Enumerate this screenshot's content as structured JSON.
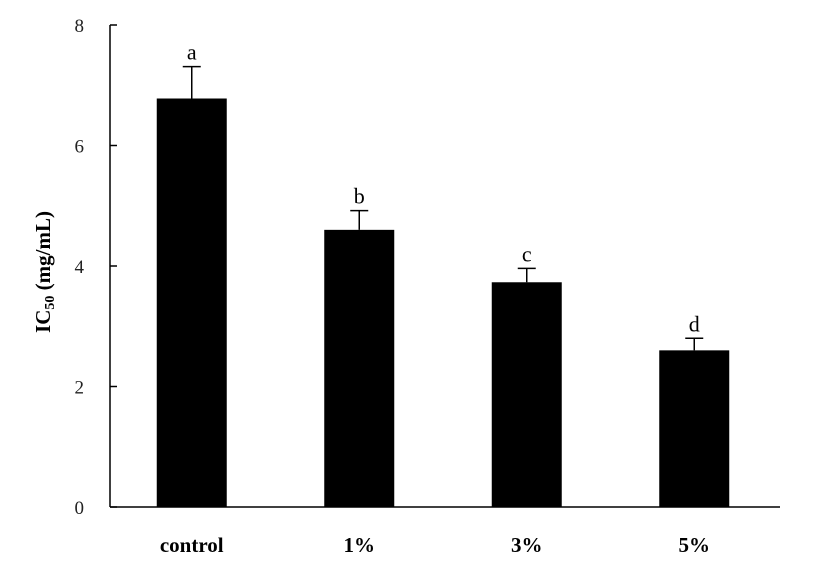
{
  "chart_data": {
    "type": "bar",
    "title": "",
    "xlabel": "",
    "ylabel": {
      "main": "IC",
      "subscript": "50",
      "unit": " (mg/mL)"
    },
    "ylim": [
      0,
      8
    ],
    "yticks": [
      0,
      2,
      4,
      6,
      8
    ],
    "categories": [
      "control",
      "1%",
      "3%",
      "5%"
    ],
    "values": [
      6.78,
      4.6,
      3.73,
      2.6
    ],
    "errors": [
      0.53,
      0.32,
      0.23,
      0.2
    ],
    "significance_letters": [
      "a",
      "b",
      "c",
      "d"
    ],
    "bar_color": "#000000",
    "grid": false,
    "legend": "none"
  }
}
